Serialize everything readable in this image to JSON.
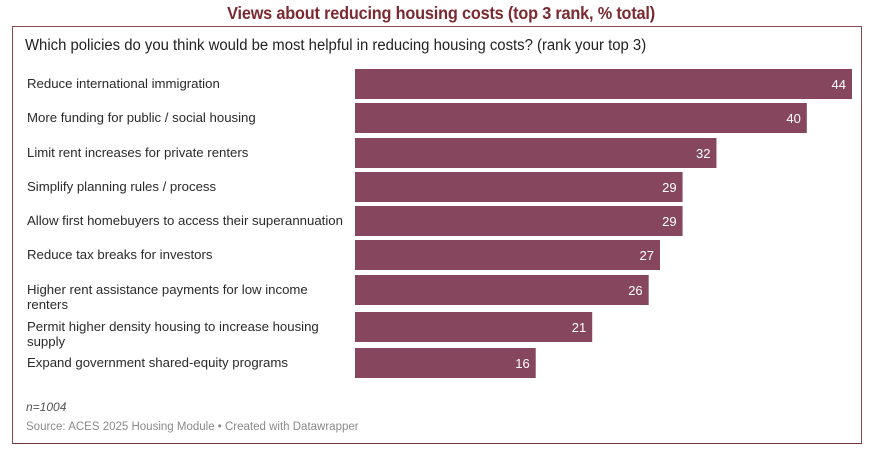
{
  "title": "Views about reducing housing costs (top 3 rank, % total)",
  "question": "Which policies do you think would be most helpful in reducing housing costs? (rank your top 3)",
  "colors": {
    "bar": "#86475e",
    "title": "#7b2a31",
    "frame": "#8a4a55",
    "bar_label": "#ffffff"
  },
  "note": "n=1004",
  "source": "Source: ACES 2025 Housing Module • Created with Datawrapper",
  "chart_data": {
    "type": "bar",
    "orientation": "horizontal",
    "title": "Views about reducing housing costs (top 3 rank, % total)",
    "subtitle": "Which policies do you think would be most helpful in reducing housing costs? (rank your top 3)",
    "xlabel": "",
    "ylabel": "",
    "xlim": [
      0,
      44
    ],
    "grid": false,
    "legend": "none",
    "categories": [
      "Reduce international immigration",
      "More funding for public / social housing",
      "Limit rent increases for private renters",
      "Simplify planning rules / process",
      "Allow first homebuyers to access their superannuation",
      "Reduce tax breaks for investors",
      "Higher rent assistance payments for low income renters",
      "Permit higher density housing to increase housing supply",
      "Expand government shared-equity programs"
    ],
    "values": [
      44,
      40,
      32,
      29,
      29,
      27,
      26,
      21,
      16
    ],
    "value_labels": [
      "44",
      "40",
      "32",
      "29",
      "29",
      "27",
      "26",
      "21",
      "16"
    ],
    "footnote": "n=1004",
    "source": "Source: ACES 2025 Housing Module • Created with Datawrapper"
  }
}
